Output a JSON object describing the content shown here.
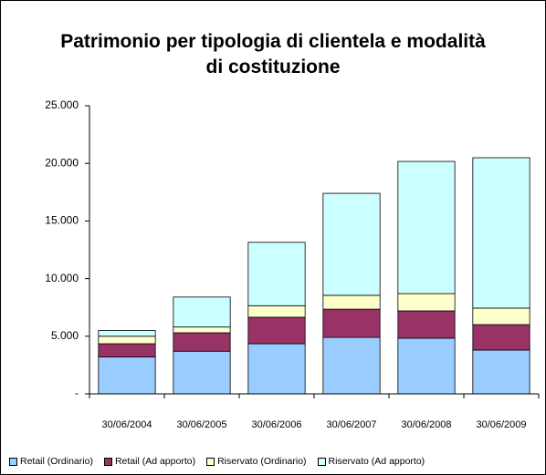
{
  "chart_data": {
    "type": "stacked_bar",
    "title": "Patrimonio per tipologia di clientela e modalità di costituzione",
    "categories": [
      "30/06/2004",
      "30/06/2005",
      "30/06/2006",
      "30/06/2007",
      "30/06/2008",
      "30/06/2009"
    ],
    "series": [
      {
        "name": "Retail (Ordinario)",
        "color": "#99ccff",
        "values": [
          3200,
          3700,
          4350,
          4900,
          4830,
          3800
        ]
      },
      {
        "name": "Retail (Ad apporto)",
        "color": "#993366",
        "values": [
          1150,
          1600,
          2300,
          2450,
          2370,
          2210
        ]
      },
      {
        "name": "Riservato (Ordinario)",
        "color": "#ffffcc",
        "values": [
          650,
          500,
          1000,
          1200,
          1500,
          1430
        ]
      },
      {
        "name": "Riservato (Ad apporto)",
        "color": "#ccffff",
        "values": [
          500,
          2600,
          5500,
          8850,
          11470,
          13050
        ]
      }
    ],
    "ylim": [
      0,
      25000
    ],
    "yticks": [
      {
        "value": 0,
        "label": "-"
      },
      {
        "value": 5000,
        "label": "5.000"
      },
      {
        "value": 10000,
        "label": "10.000"
      },
      {
        "value": 15000,
        "label": "15.000"
      },
      {
        "value": 20000,
        "label": "20.000"
      },
      {
        "value": 25000,
        "label": "25.000"
      }
    ],
    "legend": "bottom"
  }
}
